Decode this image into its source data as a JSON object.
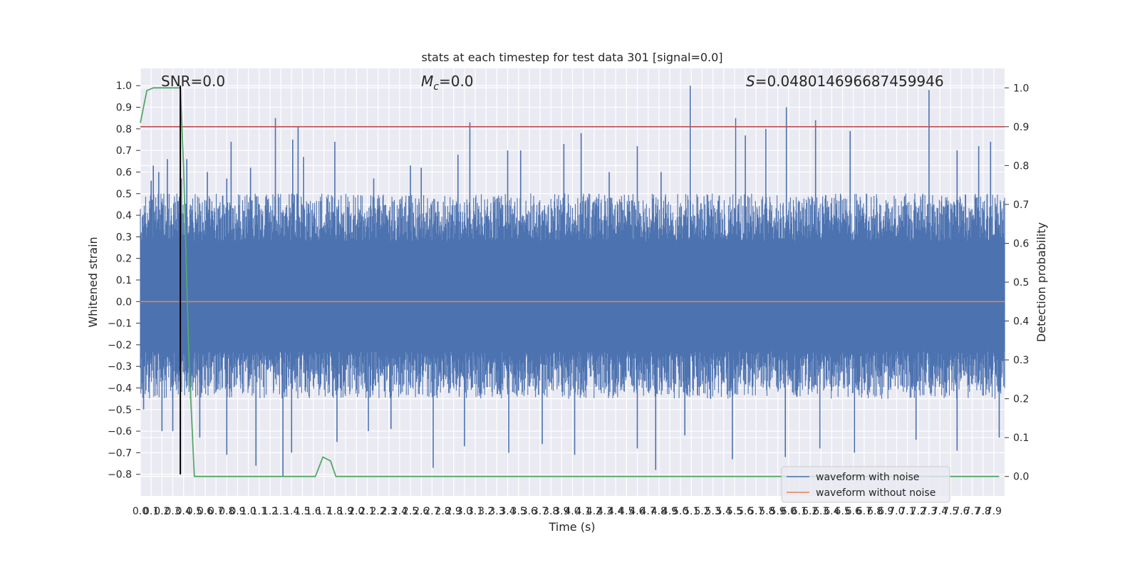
{
  "chart_data": {
    "type": "line",
    "title": "stats at each timestep for test data 301 [signal=0.0]",
    "xlabel": "Time (s)",
    "ylabel": "Whitened strain",
    "y2label": "Detection probability",
    "xlim": [
      0.0,
      8.0
    ],
    "ylim": [
      -0.9,
      1.08
    ],
    "y2lim": [
      -0.05,
      1.05
    ],
    "xticks": [
      "0.0",
      "0.1",
      "0.2",
      "0.3",
      "0.4",
      "0.5",
      "0.6",
      "0.7",
      "0.8",
      "0.9",
      "1.0",
      "1.1",
      "1.2",
      "1.3",
      "1.4",
      "1.5",
      "1.6",
      "1.7",
      "1.8",
      "1.9",
      "2.0",
      "2.1",
      "2.2",
      "2.3",
      "2.4",
      "2.5",
      "2.6",
      "2.7",
      "2.8",
      "2.9",
      "3.0",
      "3.1",
      "3.2",
      "3.3",
      "3.4",
      "3.5",
      "3.6",
      "3.7",
      "3.8",
      "3.9",
      "4.0",
      "4.1",
      "4.2",
      "4.3",
      "4.4",
      "4.5",
      "4.6",
      "4.7",
      "4.8",
      "4.9",
      "5.0",
      "5.1",
      "5.2",
      "5.3",
      "5.4",
      "5.5",
      "5.6",
      "5.7",
      "5.8",
      "5.9",
      "6.0",
      "6.1",
      "6.2",
      "6.3",
      "6.4",
      "6.5",
      "6.6",
      "6.7",
      "6.8",
      "6.9",
      "7.0",
      "7.1",
      "7.2",
      "7.3",
      "7.4",
      "7.5",
      "7.6",
      "7.7",
      "7.8",
      "7.9"
    ],
    "yticks": [
      "−0.8",
      "−0.7",
      "−0.6",
      "−0.5",
      "−0.4",
      "−0.3",
      "−0.2",
      "−0.1",
      "0.0",
      "0.1",
      "0.2",
      "0.3",
      "0.4",
      "0.5",
      "0.6",
      "0.7",
      "0.8",
      "0.9",
      "1.0"
    ],
    "y2ticks": [
      "0.0",
      "0.1",
      "0.2",
      "0.3",
      "0.4",
      "0.5",
      "0.6",
      "0.7",
      "0.8",
      "0.9",
      "1.0"
    ],
    "annotations": {
      "snr": "SNR=0.0",
      "mc": "=0.0",
      "mc_symbol": "M",
      "mc_sub": "c",
      "s_symbol": "S",
      "s": "=0.048014696687459946"
    },
    "grid": true,
    "legend_position": "lower-right",
    "legend": [
      "waveform with noise",
      "waveform without noise"
    ],
    "series": [
      {
        "name": "waveform with noise",
        "axis": "left",
        "color": "#4c72b0",
        "band": [
          -0.33,
          0.38
        ],
        "peaks": [
          [
            0.1,
            0.56
          ],
          [
            0.12,
            0.63
          ],
          [
            0.17,
            0.6
          ],
          [
            0.25,
            0.66
          ],
          [
            0.38,
            0.57
          ],
          [
            0.43,
            0.66
          ],
          [
            0.62,
            0.6
          ],
          [
            0.8,
            0.57
          ],
          [
            0.84,
            0.74
          ],
          [
            1.02,
            0.62
          ],
          [
            1.25,
            0.85
          ],
          [
            1.41,
            0.75
          ],
          [
            1.46,
            0.81
          ],
          [
            1.51,
            0.67
          ],
          [
            1.8,
            0.74
          ],
          [
            2.16,
            0.57
          ],
          [
            2.5,
            0.63
          ],
          [
            2.6,
            0.62
          ],
          [
            2.94,
            0.68
          ],
          [
            3.05,
            0.83
          ],
          [
            3.4,
            0.7
          ],
          [
            3.52,
            0.7
          ],
          [
            3.92,
            0.73
          ],
          [
            4.08,
            0.78
          ],
          [
            4.34,
            0.6
          ],
          [
            4.6,
            0.72
          ],
          [
            4.82,
            0.6
          ],
          [
            5.09,
            1.0
          ],
          [
            5.51,
            0.85
          ],
          [
            5.6,
            0.77
          ],
          [
            5.79,
            0.8
          ],
          [
            5.98,
            0.9
          ],
          [
            6.25,
            0.84
          ],
          [
            6.57,
            0.79
          ],
          [
            7.3,
            0.98
          ],
          [
            7.56,
            0.7
          ],
          [
            7.76,
            0.72
          ],
          [
            7.87,
            0.74
          ]
        ],
        "troughs": [
          [
            0.03,
            -0.5
          ],
          [
            0.2,
            -0.6
          ],
          [
            0.3,
            -0.6
          ],
          [
            0.55,
            -0.63
          ],
          [
            0.8,
            -0.71
          ],
          [
            1.07,
            -0.76
          ],
          [
            1.32,
            -0.81
          ],
          [
            1.4,
            -0.7
          ],
          [
            1.82,
            -0.65
          ],
          [
            2.11,
            -0.6
          ],
          [
            2.32,
            -0.59
          ],
          [
            2.71,
            -0.77
          ],
          [
            3.0,
            -0.67
          ],
          [
            3.41,
            -0.7
          ],
          [
            3.72,
            -0.66
          ],
          [
            4.02,
            -0.71
          ],
          [
            4.6,
            -0.68
          ],
          [
            4.77,
            -0.78
          ],
          [
            5.04,
            -0.62
          ],
          [
            5.48,
            -0.73
          ],
          [
            5.97,
            -0.72
          ],
          [
            6.29,
            -0.68
          ],
          [
            6.61,
            -0.7
          ],
          [
            7.18,
            -0.64
          ],
          [
            7.56,
            -0.69
          ],
          [
            7.95,
            -0.63
          ]
        ]
      },
      {
        "name": "waveform without noise",
        "axis": "left",
        "color": "#dd8452",
        "x": [
          0.0,
          8.0
        ],
        "y": [
          0.0,
          0.0
        ]
      },
      {
        "name": "detection probability",
        "axis": "right",
        "color": "#55a868",
        "x": [
          0.0,
          0.06,
          0.12,
          0.37,
          0.4,
          0.45,
          0.5,
          1.62,
          1.69,
          1.76,
          1.81,
          7.95
        ],
        "y": [
          0.91,
          0.993,
          1.0,
          1.0,
          0.8,
          0.3,
          0.0,
          0.0,
          0.05,
          0.04,
          0.0,
          0.0
        ]
      }
    ],
    "threshold": {
      "axis": "right",
      "value": 0.9,
      "color": "#c44e52"
    },
    "event_line": {
      "x": 0.37,
      "y_from": -0.8,
      "y_to": 1.0,
      "color": "#000000"
    },
    "background_color": "#eaeaf2",
    "grid_color": "#ffffff"
  }
}
